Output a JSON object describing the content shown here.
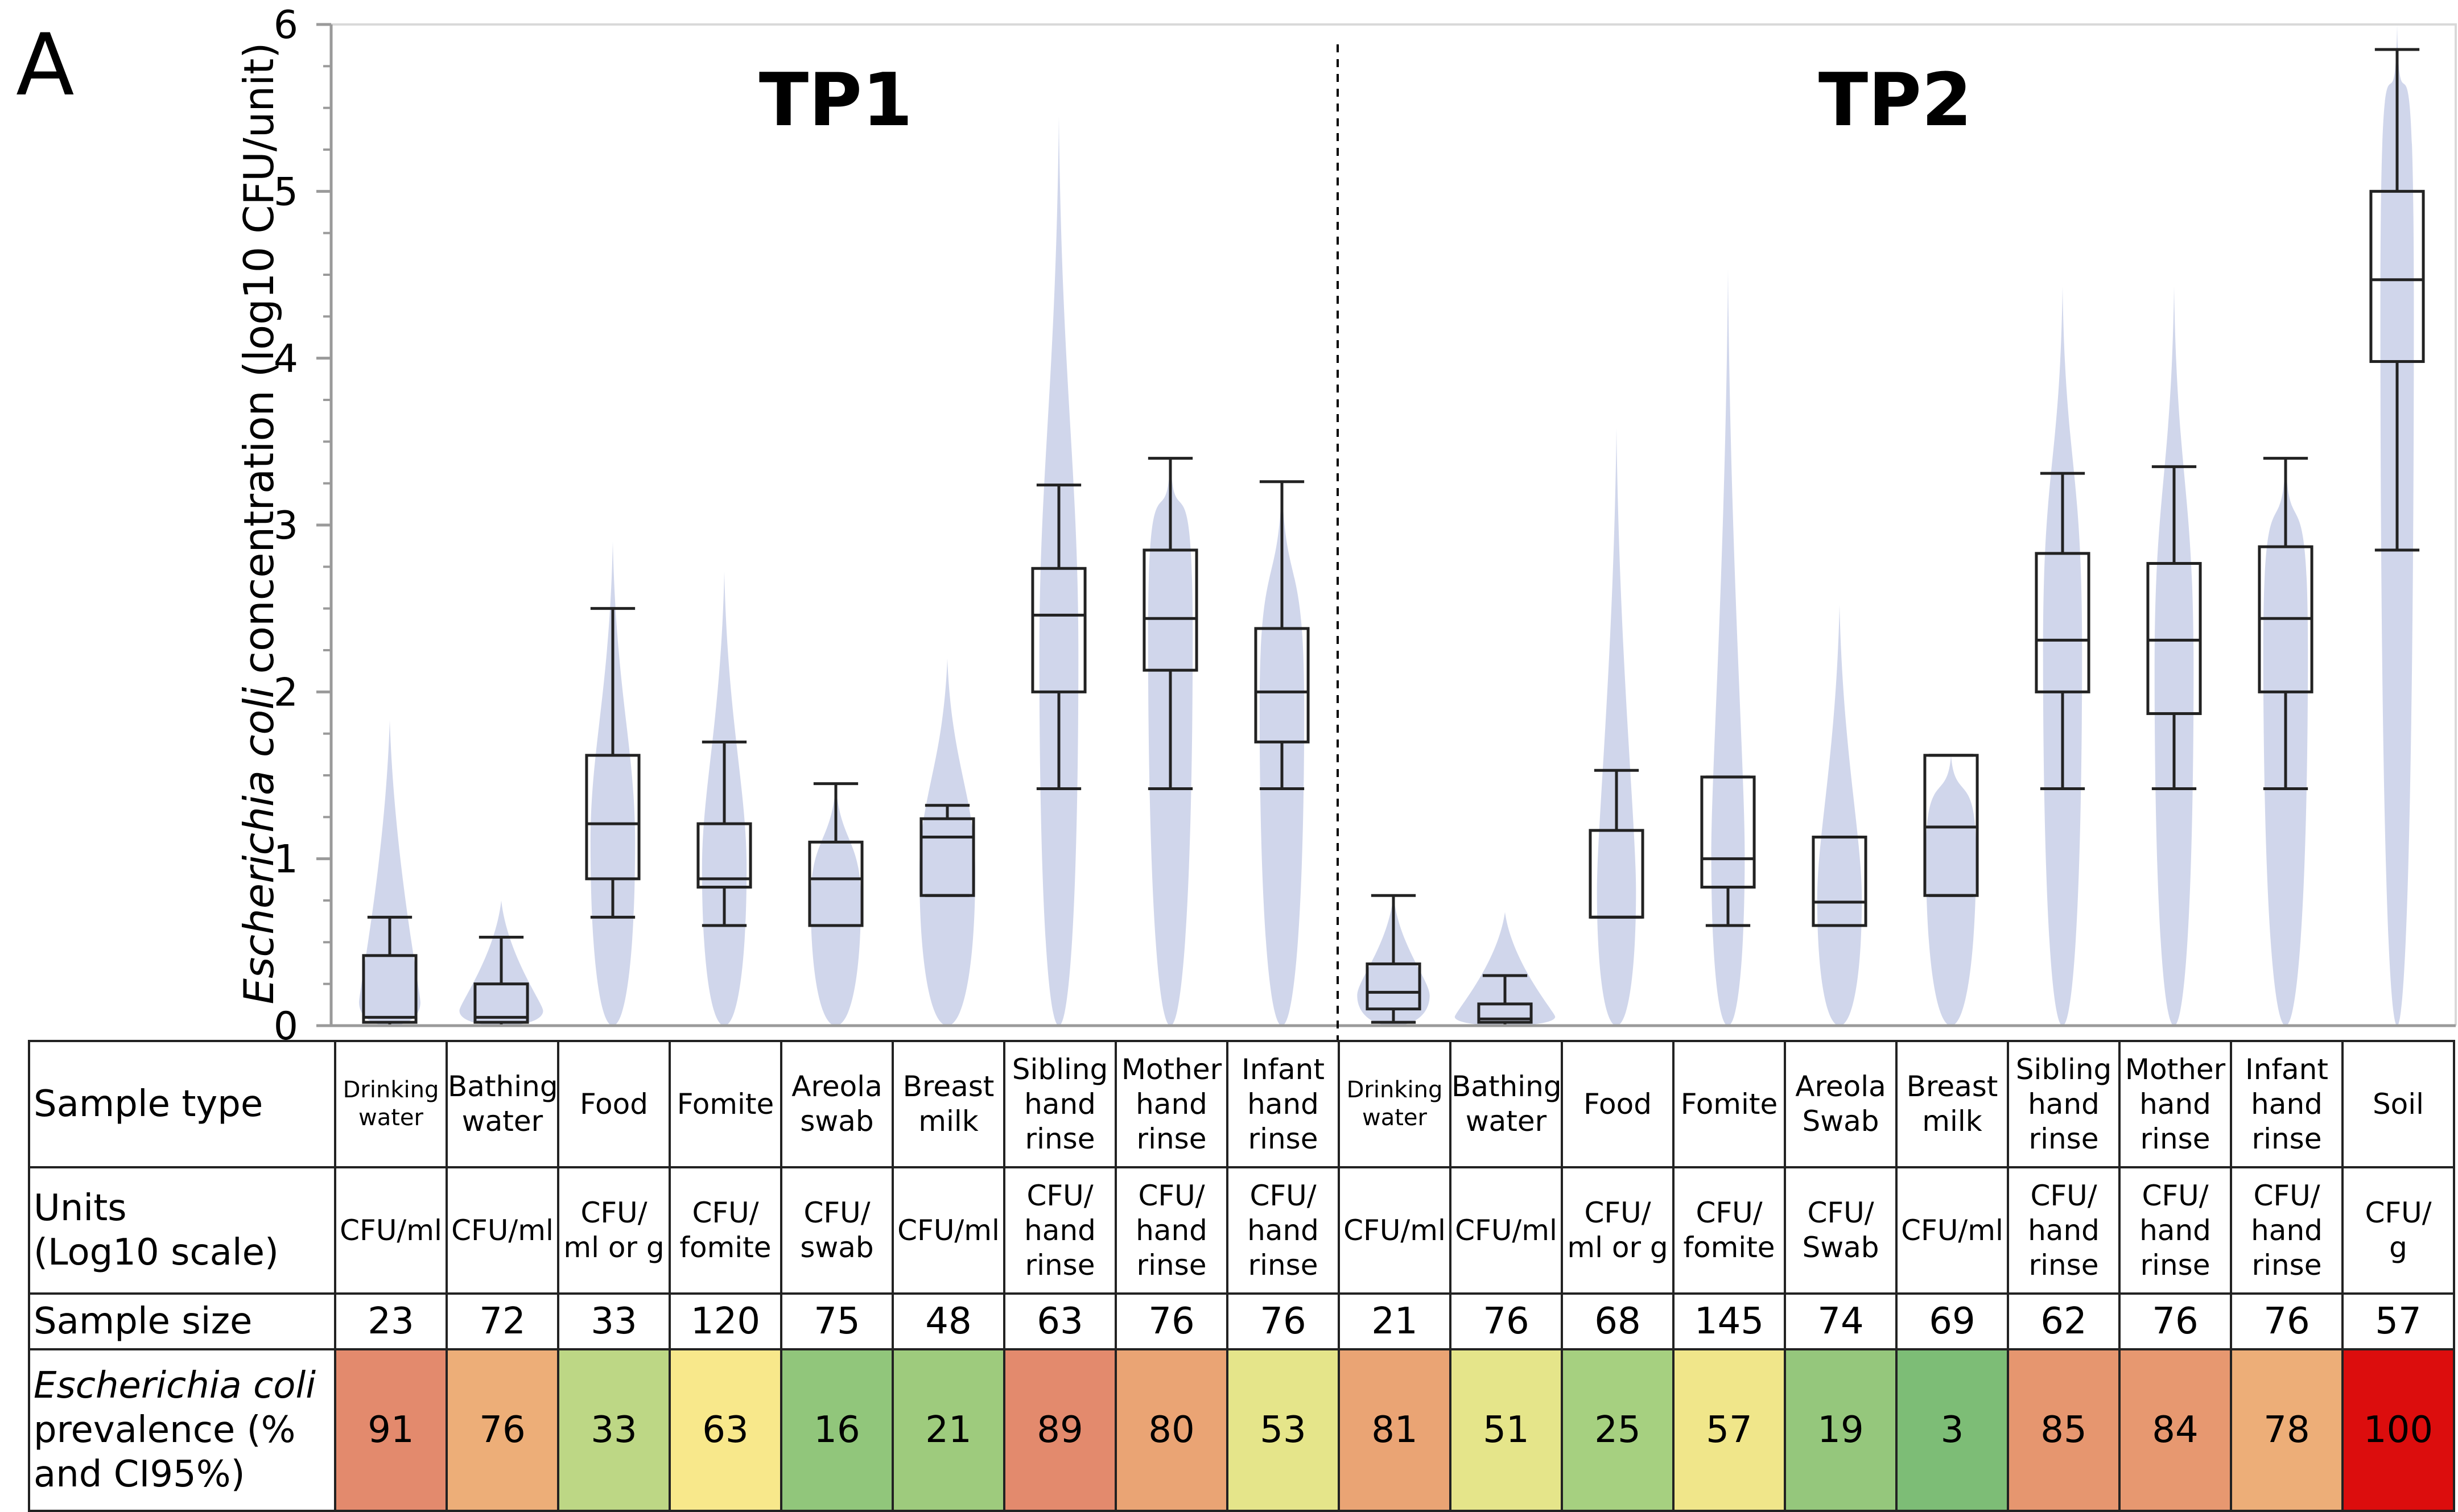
{
  "panel_label": "A",
  "chart_data": {
    "type": "box-violin",
    "ylabel_italic": "Escherichia coli",
    "ylabel_rest": " concentration (log10 CFU/unit)",
    "ylim": [
      0,
      6
    ],
    "yticks": [
      "0",
      "1",
      "2",
      "3",
      "4",
      "5",
      "6"
    ],
    "groups": [
      {
        "label": "TP1",
        "start": 0,
        "end": 9
      },
      {
        "label": "TP2",
        "start": 9,
        "end": 19
      }
    ],
    "boxes": [
      {
        "min": 0.0,
        "q1": 0.02,
        "median": 0.05,
        "q3": 0.42,
        "max": 0.65,
        "violin_max": 1.83,
        "violin_width": 0.55
      },
      {
        "min": 0.0,
        "q1": 0.02,
        "median": 0.05,
        "q3": 0.25,
        "max": 0.53,
        "violin_max": 0.75,
        "violin_width": 0.75
      },
      {
        "min": 0.65,
        "q1": 0.88,
        "median": 1.21,
        "q3": 1.62,
        "max": 2.5,
        "violin_max": 2.9,
        "violin_width": 0.4
      },
      {
        "min": 0.6,
        "q1": 0.83,
        "median": 0.88,
        "q3": 1.21,
        "max": 1.7,
        "violin_max": 2.72,
        "violin_width": 0.4
      },
      {
        "min": 0.6,
        "q1": 0.6,
        "median": 0.88,
        "q3": 1.1,
        "max": 1.45,
        "violin_max": 1.45,
        "violin_width": 0.45
      },
      {
        "min": 0.78,
        "q1": 0.78,
        "median": 1.13,
        "q3": 1.24,
        "max": 1.32,
        "violin_max": 2.2,
        "violin_width": 0.5
      },
      {
        "min": 1.42,
        "q1": 2.0,
        "median": 2.46,
        "q3": 2.74,
        "max": 3.24,
        "violin_max": 5.45,
        "violin_width": 0.35
      },
      {
        "min": 1.42,
        "q1": 2.13,
        "median": 2.44,
        "q3": 2.85,
        "max": 3.4,
        "violin_max": 3.4,
        "violin_width": 0.4
      },
      {
        "min": 1.42,
        "q1": 1.7,
        "median": 2.0,
        "q3": 2.38,
        "max": 3.26,
        "violin_max": 3.26,
        "violin_width": 0.4
      },
      {
        "min": 0.02,
        "q1": 0.1,
        "median": 0.2,
        "q3": 0.37,
        "max": 0.78,
        "violin_max": 0.78,
        "violin_width": 0.65
      },
      {
        "min": 0.0,
        "q1": 0.02,
        "median": 0.04,
        "q3": 0.13,
        "max": 0.3,
        "violin_max": 0.68,
        "violin_width": 0.9
      },
      {
        "min": 0.65,
        "q1": 0.65,
        "median": 0.65,
        "q3": 1.17,
        "max": 1.53,
        "violin_max": 3.58,
        "violin_width": 0.35
      },
      {
        "min": 0.6,
        "q1": 0.83,
        "median": 1.0,
        "q3": 1.49,
        "max": 1.49,
        "violin_max": 4.53,
        "violin_width": 0.3
      },
      {
        "min": 0.6,
        "q1": 0.6,
        "median": 0.74,
        "q3": 1.13,
        "max": 1.13,
        "violin_max": 2.52,
        "violin_width": 0.4
      },
      {
        "min": 0.78,
        "q1": 0.78,
        "median": 1.19,
        "q3": 1.62,
        "max": 1.62,
        "violin_max": 1.62,
        "violin_width": 0.45
      },
      {
        "min": 1.42,
        "q1": 2.0,
        "median": 2.31,
        "q3": 2.83,
        "max": 3.31,
        "violin_max": 4.43,
        "violin_width": 0.35
      },
      {
        "min": 1.42,
        "q1": 1.87,
        "median": 2.31,
        "q3": 2.77,
        "max": 3.35,
        "violin_max": 4.43,
        "violin_width": 0.35
      },
      {
        "min": 1.42,
        "q1": 2.0,
        "median": 2.44,
        "q3": 2.87,
        "max": 3.4,
        "violin_max": 3.4,
        "violin_width": 0.4
      },
      {
        "min": 2.85,
        "q1": 3.98,
        "median": 4.47,
        "q3": 5.0,
        "max": 5.85,
        "violin_max": 6.0,
        "violin_width": 0.3
      }
    ]
  },
  "table": {
    "rows": {
      "sample_type": "Sample type",
      "units_line1": "Units",
      "units_line2": "(Log10 scale)",
      "sample_size": "Sample size",
      "prevalence_italic": "Escherichia coli",
      "prevalence_line2": "prevalence (%",
      "prevalence_line3": "and CI95%)"
    },
    "columns": [
      {
        "type": [
          "Drinking",
          "water"
        ],
        "type_small": true,
        "units": [
          "CFU/ml"
        ],
        "n": "23",
        "prev": "91",
        "color": "#e38a6d"
      },
      {
        "type": [
          "Bathing",
          "water"
        ],
        "type_small": false,
        "units": [
          "CFU/ml"
        ],
        "n": "72",
        "prev": "76",
        "color": "#edae78"
      },
      {
        "type": [
          "Food"
        ],
        "type_small": false,
        "units": [
          "CFU/",
          "ml or g"
        ],
        "n": "33",
        "prev": "33",
        "color": "#bdd785"
      },
      {
        "type": [
          "Fomite"
        ],
        "type_small": false,
        "units": [
          "CFU/",
          "fomite"
        ],
        "n": "120",
        "prev": "63",
        "color": "#f8e88b"
      },
      {
        "type": [
          "Areola",
          "swab"
        ],
        "type_small": false,
        "units": [
          "CFU/",
          "swab"
        ],
        "n": "75",
        "prev": "16",
        "color": "#91c67b"
      },
      {
        "type": [
          "Breast",
          "milk"
        ],
        "type_small": false,
        "units": [
          "CFU/ml"
        ],
        "n": "48",
        "prev": "21",
        "color": "#9ecb7d"
      },
      {
        "type": [
          "Sibling",
          "hand",
          "rinse"
        ],
        "type_small": false,
        "units": [
          "CFU/",
          "hand",
          "rinse"
        ],
        "n": "63",
        "prev": "89",
        "color": "#e38a6d"
      },
      {
        "type": [
          "Mother",
          "hand",
          "rinse"
        ],
        "type_small": false,
        "units": [
          "CFU/",
          "hand",
          "rinse"
        ],
        "n": "76",
        "prev": "80",
        "color": "#eaa474"
      },
      {
        "type": [
          "Infant",
          "hand",
          "rinse"
        ],
        "type_small": false,
        "units": [
          "CFU/",
          "hand",
          "rinse"
        ],
        "n": "76",
        "prev": "53",
        "color": "#e5e58a"
      },
      {
        "type": [
          "Drinking",
          "water"
        ],
        "type_small": true,
        "units": [
          "CFU/ml"
        ],
        "n": "21",
        "prev": "81",
        "color": "#eaa474"
      },
      {
        "type": [
          "Bathing",
          "water"
        ],
        "type_small": false,
        "units": [
          "CFU/ml"
        ],
        "n": "76",
        "prev": "51",
        "color": "#e5e58a"
      },
      {
        "type": [
          "Food"
        ],
        "type_small": false,
        "units": [
          "CFU/",
          "ml or g"
        ],
        "n": "68",
        "prev": "25",
        "color": "#a6d080"
      },
      {
        "type": [
          "Fomite"
        ],
        "type_small": false,
        "units": [
          "CFU/",
          "fomite"
        ],
        "n": "145",
        "prev": "57",
        "color": "#f0e68a"
      },
      {
        "type": [
          "Areola",
          "Swab"
        ],
        "type_small": false,
        "units": [
          "CFU/",
          "Swab"
        ],
        "n": "74",
        "prev": "19",
        "color": "#95c77c"
      },
      {
        "type": [
          "Breast",
          "milk"
        ],
        "type_small": false,
        "units": [
          "CFU/ml"
        ],
        "n": "69",
        "prev": "3",
        "color": "#7dbd76"
      },
      {
        "type": [
          "Sibling",
          "hand",
          "rinse"
        ],
        "type_small": false,
        "units": [
          "CFU/",
          "hand",
          "rinse"
        ],
        "n": "62",
        "prev": "85",
        "color": "#e6966f"
      },
      {
        "type": [
          "Mother",
          "hand",
          "rinse"
        ],
        "type_small": false,
        "units": [
          "CFU/",
          "hand",
          "rinse"
        ],
        "n": "76",
        "prev": "84",
        "color": "#e79870"
      },
      {
        "type": [
          "Infant",
          "hand",
          "rinse"
        ],
        "type_small": false,
        "units": [
          "CFU/",
          "hand",
          "rinse"
        ],
        "n": "76",
        "prev": "78",
        "color": "#edae78"
      },
      {
        "type": [
          "Soil"
        ],
        "type_small": false,
        "units": [
          "CFU/",
          "g"
        ],
        "n": "57",
        "prev": "100",
        "color": "#dc0d0d"
      }
    ]
  }
}
